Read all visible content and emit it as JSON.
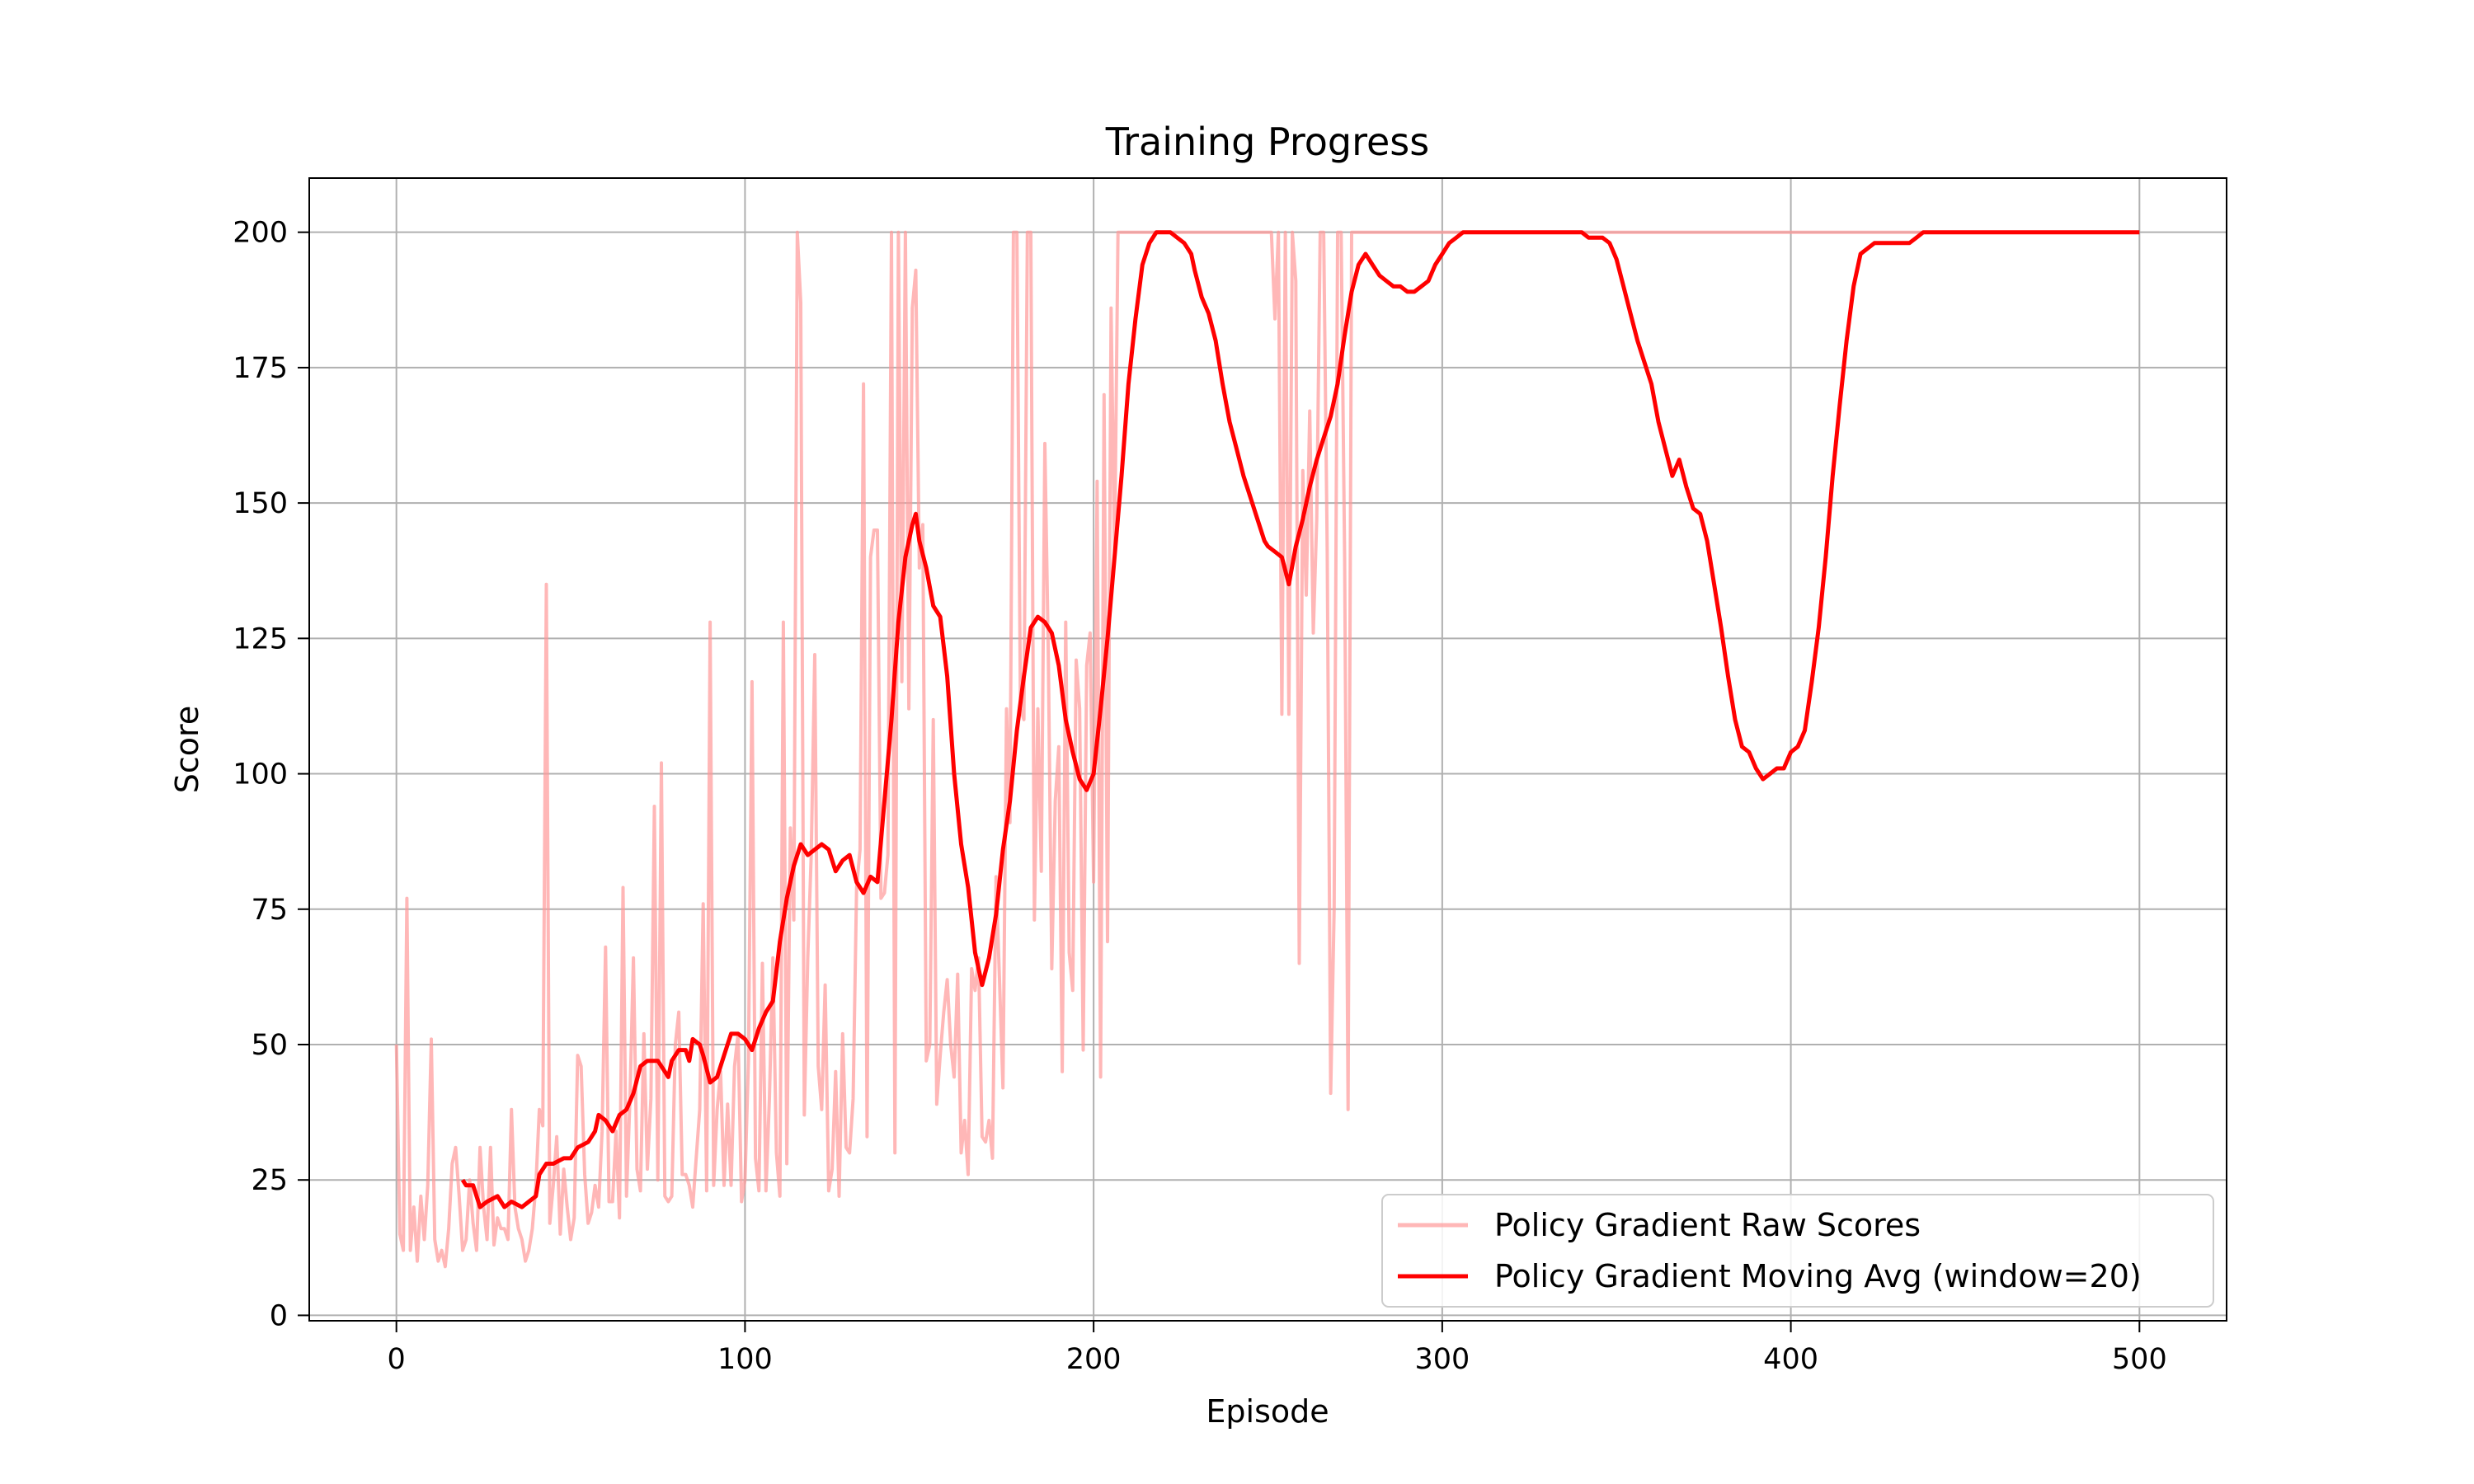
{
  "chart_data": {
    "type": "line",
    "title": "Training Progress",
    "xlabel": "Episode",
    "ylabel": "Score",
    "xlim": [
      -25,
      525
    ],
    "ylim": [
      -1,
      210
    ],
    "xticks": [
      0,
      100,
      200,
      300,
      400,
      500
    ],
    "yticks": [
      0,
      25,
      50,
      75,
      100,
      125,
      150,
      175,
      200
    ],
    "grid": true,
    "legend_position": "bottom-right",
    "series": [
      {
        "name": "Policy Gradient Raw Scores",
        "color": "#ff9999",
        "opacity": 0.7,
        "x_start": 0,
        "values": [
          50,
          15,
          12,
          77,
          12,
          20,
          10,
          22,
          14,
          24,
          51,
          14,
          10,
          12,
          9,
          16,
          28,
          31,
          22,
          12,
          14,
          25,
          17,
          12,
          31,
          20,
          14,
          31,
          13,
          18,
          16,
          16,
          14,
          38,
          20,
          16,
          14,
          10,
          12,
          16,
          24,
          38,
          35,
          135,
          17,
          24,
          33,
          15,
          27,
          20,
          14,
          18,
          48,
          46,
          26,
          17,
          19,
          24,
          20,
          34,
          68,
          21,
          21,
          34,
          18,
          79,
          22,
          40,
          66,
          27,
          23,
          52,
          27,
          40,
          94,
          25,
          102,
          22,
          21,
          22,
          50,
          56,
          26,
          26,
          24,
          20,
          29,
          38,
          76,
          23,
          128,
          24,
          38,
          45,
          24,
          39,
          24,
          46,
          52,
          21,
          25,
          47,
          117,
          29,
          23,
          65,
          23,
          40,
          66,
          30,
          22,
          128,
          28,
          90,
          73,
          200,
          187,
          37,
          66,
          85,
          122,
          46,
          38,
          61,
          23,
          27,
          45,
          22,
          52,
          31,
          30,
          40,
          79,
          86,
          172,
          33,
          140,
          145,
          145,
          77,
          78,
          85,
          200,
          30,
          200,
          117,
          200,
          112,
          186,
          193,
          138,
          146,
          47,
          50,
          110,
          39,
          48,
          56,
          62,
          50,
          44,
          63,
          30,
          36,
          26,
          64,
          60,
          66,
          33,
          32,
          36,
          29,
          81,
          62,
          42,
          112,
          91,
          200,
          200,
          112,
          110,
          200,
          200,
          73,
          112,
          82,
          161,
          122,
          64,
          95,
          105,
          45,
          128,
          67,
          60,
          121,
          112,
          49,
          120,
          126,
          80,
          154,
          44,
          170,
          69,
          186,
          140,
          200,
          200,
          200,
          200,
          200,
          200,
          200,
          200,
          200,
          200,
          200,
          200,
          200,
          200,
          200,
          200,
          200,
          200,
          200,
          200,
          200,
          200,
          200,
          200,
          200,
          200,
          200,
          200,
          200,
          200,
          200,
          200,
          200,
          200,
          200,
          200,
          200,
          200,
          200,
          200,
          200,
          200,
          200,
          200,
          200,
          184,
          200,
          111,
          200,
          111,
          200,
          191,
          65,
          156,
          133,
          167,
          126,
          147,
          200,
          200,
          141,
          41,
          75,
          200,
          200,
          140,
          38,
          200,
          200,
          200,
          200,
          200,
          200,
          200,
          200,
          200,
          200,
          200,
          200,
          200,
          200,
          200,
          200,
          200,
          200,
          200,
          200,
          200,
          200,
          200,
          200,
          200,
          200,
          200,
          200,
          200,
          200,
          200,
          200,
          200,
          200,
          200,
          200,
          200,
          200,
          200,
          200,
          200,
          200,
          200,
          200,
          200,
          200,
          200,
          200,
          200,
          200,
          200,
          200,
          200,
          200,
          200,
          200,
          200,
          200,
          200,
          200,
          200,
          200,
          200,
          200,
          200,
          200,
          200,
          200,
          200,
          200,
          200,
          200,
          200,
          200,
          200,
          200,
          200,
          200,
          200,
          200,
          200,
          200,
          200,
          200,
          200,
          200,
          200,
          200,
          200,
          200,
          200,
          200,
          200,
          200,
          200,
          200,
          200,
          200,
          200,
          200,
          200,
          200,
          200,
          200,
          200,
          200,
          200,
          200,
          200,
          200,
          200,
          200,
          200,
          200,
          200,
          200,
          200,
          200,
          200,
          200,
          200,
          200,
          200,
          200,
          200,
          200,
          200,
          200,
          200,
          200,
          200,
          200,
          200,
          200,
          200,
          200,
          200,
          200,
          200,
          200,
          200,
          200,
          200,
          200,
          200,
          200,
          200,
          200,
          200,
          200,
          200,
          200,
          200,
          200,
          200,
          200,
          200,
          200,
          200,
          200,
          200,
          200,
          200,
          200,
          200,
          200,
          200,
          200,
          200,
          200,
          200,
          200,
          200,
          200,
          200,
          200,
          200,
          200,
          200,
          200,
          200,
          200,
          200,
          200,
          200,
          200,
          200,
          200,
          200,
          200,
          200,
          200,
          200,
          200,
          200,
          200,
          200,
          200,
          200,
          200,
          200,
          200,
          200,
          200,
          200,
          200
        ]
      },
      {
        "name": "Policy Gradient Moving Avg (window=20)",
        "color": "#ff0000",
        "opacity": 1,
        "x_start": 19,
        "points": [
          [
            19,
            25
          ],
          [
            20,
            24
          ],
          [
            22,
            24
          ],
          [
            24,
            20
          ],
          [
            26,
            21
          ],
          [
            29,
            22
          ],
          [
            31,
            20
          ],
          [
            33,
            21
          ],
          [
            36,
            20
          ],
          [
            38,
            21
          ],
          [
            40,
            22
          ],
          [
            41,
            26
          ],
          [
            43,
            28
          ],
          [
            45,
            28
          ],
          [
            48,
            29
          ],
          [
            50,
            29
          ],
          [
            52,
            31
          ],
          [
            55,
            32
          ],
          [
            57,
            34
          ],
          [
            58,
            37
          ],
          [
            60,
            36
          ],
          [
            62,
            34
          ],
          [
            64,
            37
          ],
          [
            66,
            38
          ],
          [
            68,
            41
          ],
          [
            70,
            46
          ],
          [
            72,
            47
          ],
          [
            75,
            47
          ],
          [
            77,
            45
          ],
          [
            78,
            44
          ],
          [
            79,
            47
          ],
          [
            81,
            49
          ],
          [
            83,
            49
          ],
          [
            84,
            47
          ],
          [
            85,
            51
          ],
          [
            87,
            50
          ],
          [
            88,
            48
          ],
          [
            90,
            43
          ],
          [
            92,
            44
          ],
          [
            94,
            48
          ],
          [
            96,
            52
          ],
          [
            98,
            52
          ],
          [
            100,
            51
          ],
          [
            102,
            49
          ],
          [
            104,
            53
          ],
          [
            106,
            56
          ],
          [
            108,
            58
          ],
          [
            110,
            69
          ],
          [
            112,
            77
          ],
          [
            114,
            83
          ],
          [
            116,
            87
          ],
          [
            118,
            85
          ],
          [
            120,
            86
          ],
          [
            122,
            87
          ],
          [
            124,
            86
          ],
          [
            126,
            82
          ],
          [
            128,
            84
          ],
          [
            130,
            85
          ],
          [
            132,
            80
          ],
          [
            134,
            78
          ],
          [
            136,
            81
          ],
          [
            138,
            80
          ],
          [
            140,
            95
          ],
          [
            142,
            110
          ],
          [
            144,
            128
          ],
          [
            146,
            140
          ],
          [
            148,
            146
          ],
          [
            149,
            148
          ],
          [
            150,
            143
          ],
          [
            152,
            138
          ],
          [
            154,
            131
          ],
          [
            156,
            129
          ],
          [
            158,
            118
          ],
          [
            160,
            100
          ],
          [
            162,
            87
          ],
          [
            164,
            79
          ],
          [
            166,
            67
          ],
          [
            168,
            61
          ],
          [
            170,
            66
          ],
          [
            172,
            74
          ],
          [
            174,
            86
          ],
          [
            176,
            95
          ],
          [
            178,
            108
          ],
          [
            180,
            118
          ],
          [
            182,
            127
          ],
          [
            184,
            129
          ],
          [
            186,
            128
          ],
          [
            188,
            126
          ],
          [
            190,
            120
          ],
          [
            192,
            110
          ],
          [
            194,
            104
          ],
          [
            196,
            99
          ],
          [
            198,
            97
          ],
          [
            200,
            100
          ],
          [
            202,
            112
          ],
          [
            204,
            125
          ],
          [
            206,
            140
          ],
          [
            208,
            155
          ],
          [
            210,
            172
          ],
          [
            212,
            184
          ],
          [
            214,
            194
          ],
          [
            216,
            198
          ],
          [
            218,
            200
          ],
          [
            222,
            200
          ],
          [
            224,
            199
          ],
          [
            226,
            198
          ],
          [
            228,
            196
          ],
          [
            229,
            193
          ],
          [
            231,
            188
          ],
          [
            233,
            185
          ],
          [
            235,
            180
          ],
          [
            237,
            172
          ],
          [
            239,
            165
          ],
          [
            241,
            160
          ],
          [
            243,
            155
          ],
          [
            245,
            151
          ],
          [
            247,
            147
          ],
          [
            249,
            143
          ],
          [
            250,
            142
          ],
          [
            252,
            141
          ],
          [
            254,
            140
          ],
          [
            256,
            135
          ],
          [
            258,
            142
          ],
          [
            260,
            147
          ],
          [
            262,
            153
          ],
          [
            264,
            158
          ],
          [
            266,
            162
          ],
          [
            268,
            166
          ],
          [
            270,
            172
          ],
          [
            272,
            181
          ],
          [
            274,
            189
          ],
          [
            276,
            194
          ],
          [
            278,
            196
          ],
          [
            280,
            194
          ],
          [
            282,
            192
          ],
          [
            284,
            191
          ],
          [
            286,
            190
          ],
          [
            288,
            190
          ],
          [
            290,
            189
          ],
          [
            292,
            189
          ],
          [
            294,
            190
          ],
          [
            296,
            191
          ],
          [
            298,
            194
          ],
          [
            300,
            196
          ],
          [
            302,
            198
          ],
          [
            304,
            199
          ],
          [
            306,
            200
          ],
          [
            312,
            200
          ],
          [
            317,
            200
          ],
          [
            320,
            200
          ],
          [
            340,
            200
          ],
          [
            342,
            199
          ],
          [
            346,
            199
          ],
          [
            348,
            198
          ],
          [
            350,
            195
          ],
          [
            352,
            190
          ],
          [
            354,
            185
          ],
          [
            356,
            180
          ],
          [
            358,
            176
          ],
          [
            360,
            172
          ],
          [
            362,
            165
          ],
          [
            364,
            160
          ],
          [
            366,
            155
          ],
          [
            368,
            158
          ],
          [
            370,
            153
          ],
          [
            372,
            149
          ],
          [
            374,
            148
          ],
          [
            376,
            143
          ],
          [
            378,
            135
          ],
          [
            380,
            127
          ],
          [
            382,
            118
          ],
          [
            384,
            110
          ],
          [
            386,
            105
          ],
          [
            388,
            104
          ],
          [
            390,
            101
          ],
          [
            392,
            99
          ],
          [
            394,
            100
          ],
          [
            396,
            101
          ],
          [
            398,
            101
          ],
          [
            400,
            104
          ],
          [
            402,
            105
          ],
          [
            404,
            108
          ],
          [
            406,
            117
          ],
          [
            408,
            127
          ],
          [
            410,
            140
          ],
          [
            412,
            155
          ],
          [
            414,
            168
          ],
          [
            416,
            180
          ],
          [
            418,
            190
          ],
          [
            420,
            196
          ],
          [
            424,
            198
          ],
          [
            428,
            198
          ],
          [
            432,
            198
          ],
          [
            434,
            198
          ],
          [
            436,
            199
          ],
          [
            438,
            200
          ],
          [
            440,
            200
          ],
          [
            450,
            200
          ],
          [
            460,
            200
          ],
          [
            470,
            200
          ],
          [
            480,
            200
          ],
          [
            490,
            200
          ],
          [
            500,
            200
          ]
        ]
      }
    ]
  }
}
